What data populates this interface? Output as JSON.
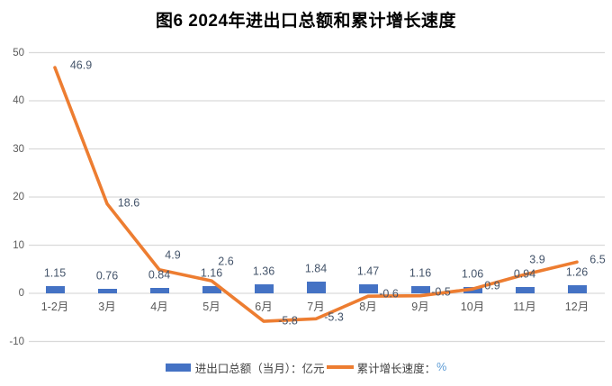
{
  "title": "图6 2024年进出口总额和累计增长速度",
  "chart_data": {
    "type": "combo-bar-line",
    "categories": [
      "1-2月",
      "3月",
      "4月",
      "5月",
      "6月",
      "7月",
      "8月",
      "9月",
      "10月",
      "11月",
      "12月"
    ],
    "series": [
      {
        "name": "进出口总额（当月）：亿元",
        "type": "bar",
        "color": "#4472C4",
        "values": [
          1.15,
          0.76,
          0.84,
          1.16,
          1.36,
          1.84,
          1.47,
          1.16,
          1.06,
          0.94,
          1.26
        ]
      },
      {
        "name": "累计增长速度：%",
        "type": "line",
        "color": "#ED7D31",
        "values": [
          46.9,
          18.6,
          4.9,
          2.6,
          -5.8,
          -5.3,
          -0.6,
          -0.5,
          0.9,
          3.9,
          6.5
        ]
      }
    ],
    "ylim": [
      -10,
      50
    ],
    "yticks": [
      50,
      40,
      30,
      20,
      10,
      0,
      -10
    ],
    "grid": true,
    "legend_position": "bottom",
    "data_labels": true,
    "title": "图6 2024年进出口总额和累计增长速度"
  },
  "legend": {
    "bar_label": "进出口总额（当月）：亿元",
    "line_label": "累计增长速度：",
    "line_unit": "%"
  },
  "colors": {
    "bar": "#4472C4",
    "line": "#ED7D31",
    "grid": "#D9D9D9",
    "axis_text": "#595959",
    "data_label": "#44546A",
    "legend_unit": "#5B9BD5",
    "background": "#FFFFFF"
  }
}
